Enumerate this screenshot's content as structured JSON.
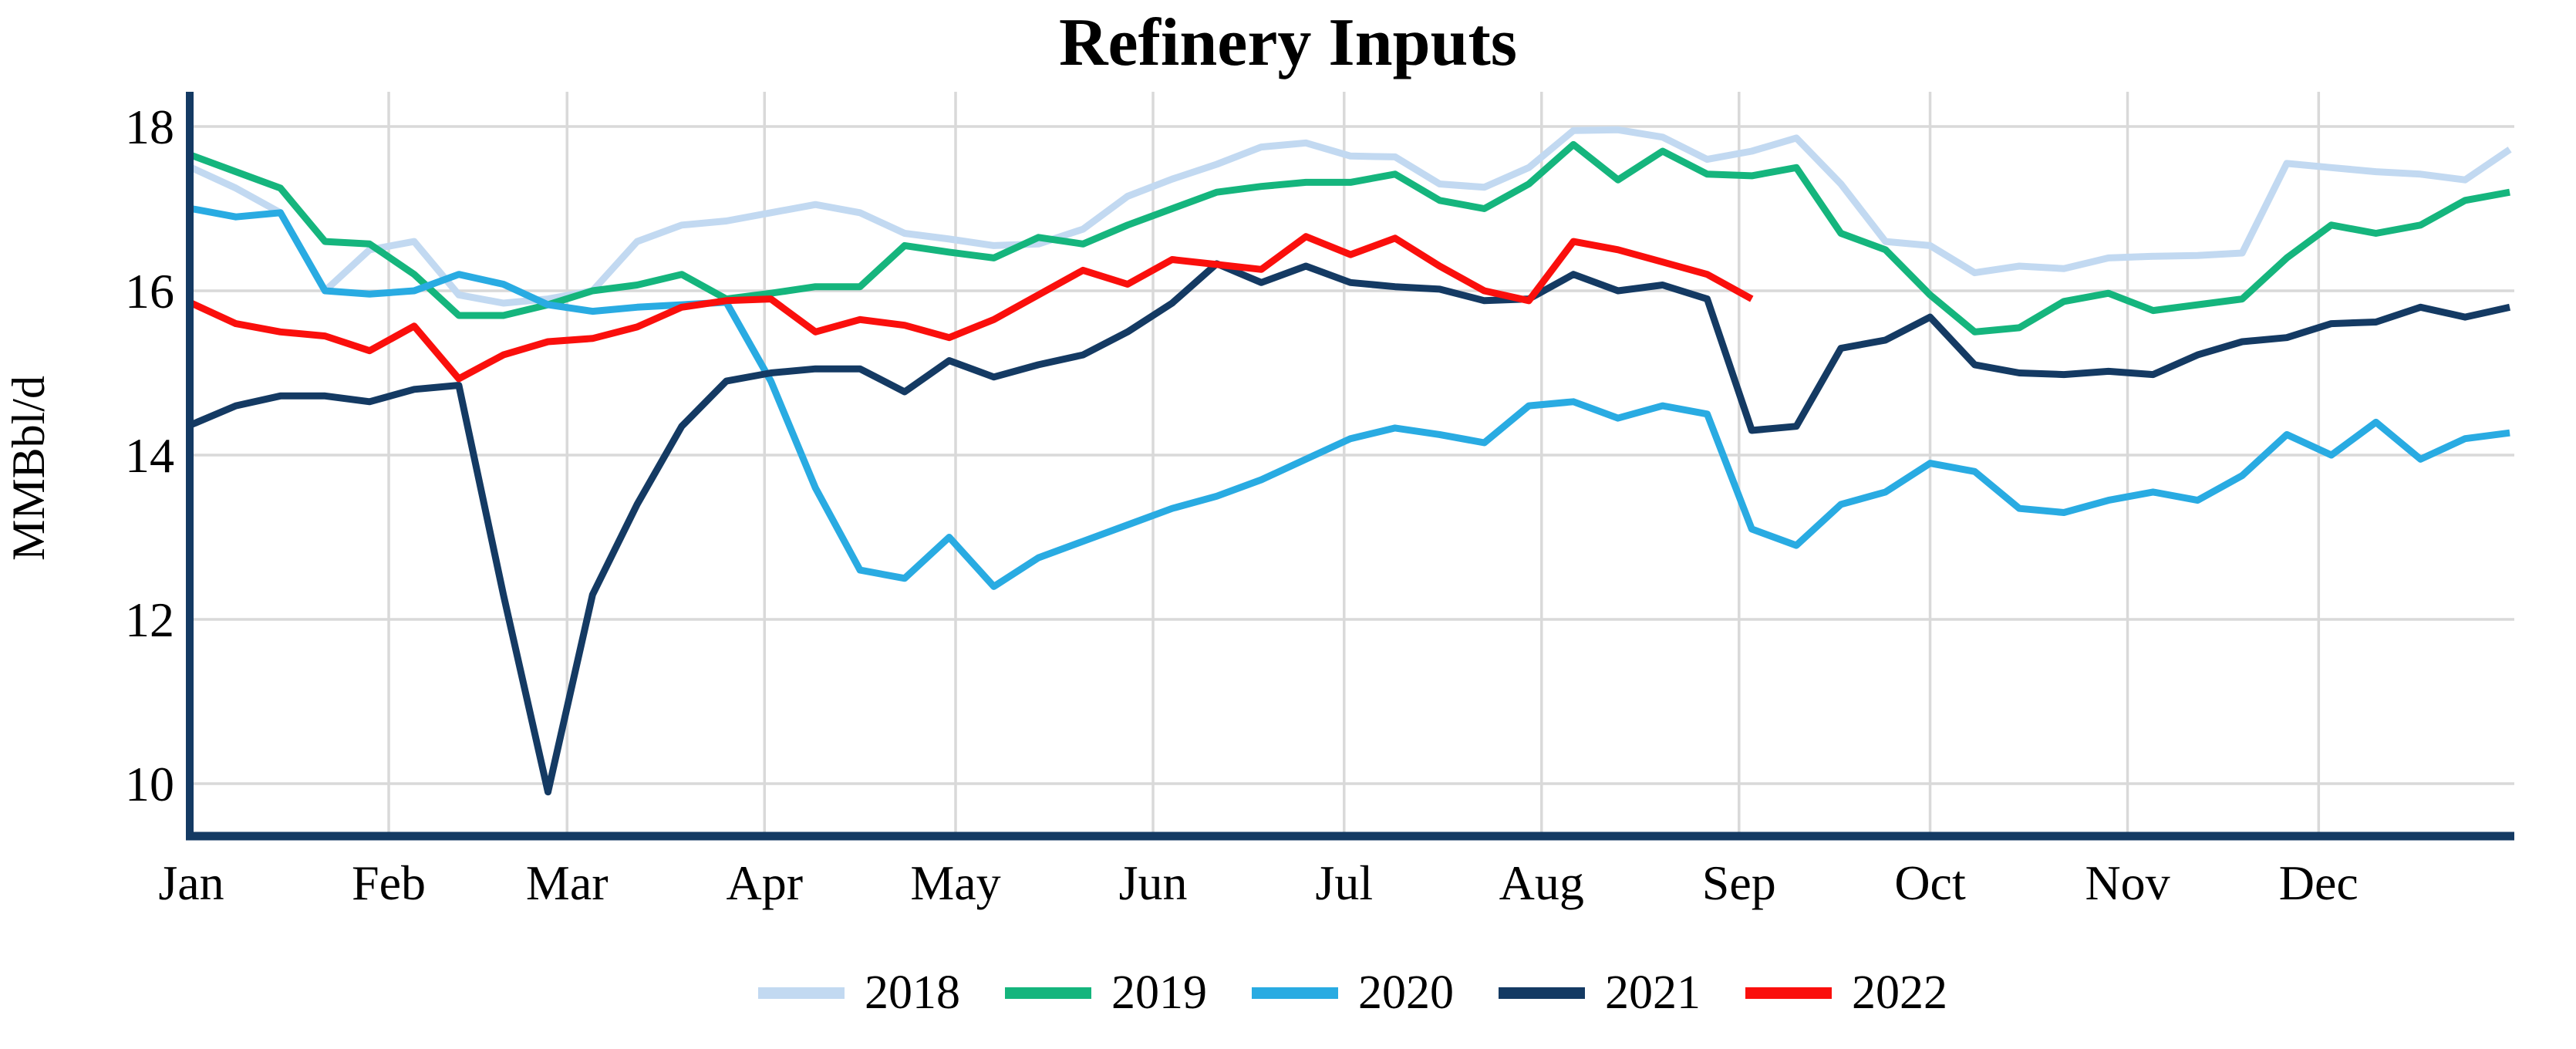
{
  "title": "Refinery Inputs",
  "y_axis": {
    "label": "MMBbl/d",
    "ticks": [
      "18",
      "16",
      "14",
      "12",
      "10"
    ]
  },
  "x_axis": {
    "months": [
      "Jan",
      "Feb",
      "Mar",
      "Apr",
      "May",
      "Jun",
      "Jul",
      "Aug",
      "Sep",
      "Oct",
      "Nov",
      "Dec"
    ]
  },
  "colors": {
    "background": "#ffffff",
    "grid": "#d9d9d9",
    "axis": "#143a63",
    "text": "#000000"
  },
  "chart_data": {
    "type": "line",
    "title": "Refinery Inputs",
    "xlabel": "",
    "ylabel": "MMBbl/d",
    "x_unit": "week of year (weekly data, one point per week, Jan 1 through Dec 31)",
    "x_tick_labels": [
      "Jan",
      "Feb",
      "Mar",
      "Apr",
      "May",
      "Jun",
      "Jul",
      "Aug",
      "Sep",
      "Oct",
      "Nov",
      "Dec"
    ],
    "y_ticks": [
      18,
      16,
      14,
      12,
      10
    ],
    "ylim": [
      9.4,
      18.4
    ],
    "grid": true,
    "legend_position": "bottom",
    "series": [
      {
        "name": "2018",
        "color": "#c2d9f1",
        "values": [
          17.5,
          17.25,
          16.95,
          16.0,
          16.5,
          16.6,
          15.95,
          15.85,
          15.9,
          16.0,
          16.6,
          16.8,
          16.85,
          16.95,
          17.05,
          16.95,
          16.7,
          16.63,
          16.55,
          16.57,
          16.75,
          17.15,
          17.36,
          17.54,
          17.75,
          17.8,
          17.64,
          17.63,
          17.3,
          17.26,
          17.5,
          17.95,
          17.96,
          17.87,
          17.6,
          17.7,
          17.86,
          17.3,
          16.6,
          16.55,
          16.22,
          16.3,
          16.27,
          16.4,
          16.42,
          16.43,
          16.46,
          17.55,
          17.5,
          17.45,
          17.42,
          17.35,
          17.72
        ]
      },
      {
        "name": "2019",
        "color": "#15b57d",
        "values": [
          17.65,
          17.45,
          17.25,
          16.6,
          16.57,
          16.2,
          15.7,
          15.7,
          15.83,
          16.0,
          16.07,
          16.2,
          15.9,
          15.97,
          16.05,
          16.05,
          16.55,
          16.47,
          16.4,
          16.65,
          16.57,
          16.8,
          17.0,
          17.2,
          17.27,
          17.32,
          17.32,
          17.42,
          17.1,
          17.0,
          17.3,
          17.78,
          17.35,
          17.7,
          17.42,
          17.4,
          17.5,
          16.7,
          16.5,
          15.95,
          15.5,
          15.55,
          15.87,
          15.97,
          15.76,
          15.83,
          15.9,
          16.4,
          16.8,
          16.7,
          16.8,
          17.1,
          17.2
        ]
      },
      {
        "name": "2020",
        "color": "#29abe2",
        "values": [
          17.0,
          16.9,
          16.95,
          16.0,
          15.96,
          16.0,
          16.2,
          16.08,
          15.83,
          15.75,
          15.8,
          15.83,
          15.86,
          14.9,
          13.6,
          12.6,
          12.5,
          13.0,
          12.4,
          12.75,
          12.95,
          13.15,
          13.35,
          13.5,
          13.7,
          13.95,
          14.2,
          14.33,
          14.25,
          14.15,
          14.6,
          14.65,
          14.45,
          14.6,
          14.5,
          13.1,
          12.9,
          13.4,
          13.55,
          13.9,
          13.8,
          13.35,
          13.3,
          13.45,
          13.55,
          13.45,
          13.75,
          14.25,
          14.0,
          14.4,
          13.95,
          14.2,
          14.27
        ]
      },
      {
        "name": "2021",
        "color": "#143a63",
        "values": [
          14.37,
          14.6,
          14.72,
          14.72,
          14.65,
          14.8,
          14.85,
          12.3,
          9.9,
          12.3,
          13.4,
          14.35,
          14.9,
          15.0,
          15.05,
          15.05,
          14.77,
          15.15,
          14.95,
          15.1,
          15.22,
          15.5,
          15.85,
          16.33,
          16.1,
          16.3,
          16.1,
          16.05,
          16.02,
          15.88,
          15.9,
          16.2,
          16.0,
          16.07,
          15.9,
          14.3,
          14.35,
          15.3,
          15.4,
          15.68,
          15.1,
          15.0,
          14.98,
          15.02,
          14.98,
          15.22,
          15.38,
          15.43,
          15.6,
          15.62,
          15.8,
          15.68,
          15.8
        ]
      },
      {
        "name": "2022",
        "color": "#fa0f0c",
        "values": [
          15.85,
          15.6,
          15.5,
          15.45,
          15.27,
          15.57,
          14.93,
          15.22,
          15.38,
          15.42,
          15.56,
          15.8,
          15.88,
          15.9,
          15.5,
          15.65,
          15.58,
          15.43,
          15.65,
          15.95,
          16.25,
          16.08,
          16.38,
          16.32,
          16.26,
          16.66,
          16.44,
          16.64,
          16.3,
          16.0,
          15.88,
          16.6,
          16.5,
          16.35,
          16.2,
          15.9
        ]
      }
    ]
  }
}
